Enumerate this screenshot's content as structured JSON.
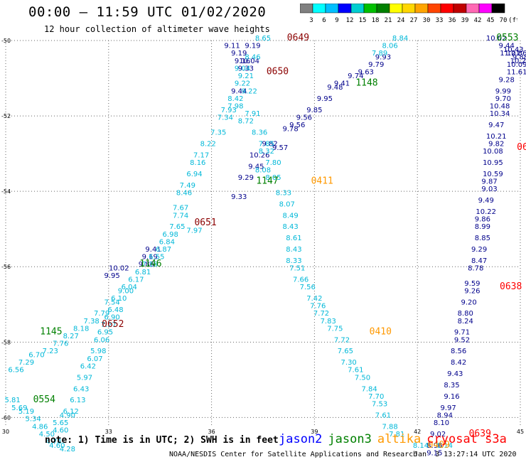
{
  "header": {
    "title": "00:00 – 11:59 UTC 01/02/2020",
    "subtitle": "12 hour collection of altimeter wave heights"
  },
  "colorbar": {
    "labels": [
      "3",
      "6",
      "9",
      "12",
      "15",
      "18",
      "21",
      "24",
      "27",
      "30",
      "33",
      "36",
      "39",
      "42",
      "45",
      "70",
      "(ft)"
    ],
    "colors": [
      "#808080",
      "#00ffff",
      "#00bfff",
      "#0000ff",
      "#00ced1",
      "#00c000",
      "#008000",
      "#ffff00",
      "#ffd700",
      "#ffa500",
      "#ff4500",
      "#ff0000",
      "#c00000",
      "#ff69b4",
      "#ff00ff",
      "#000000"
    ]
  },
  "footer": {
    "note": "note: 1) Time is in UTC; 2) SWH is in feet",
    "credit": "NOAA/NESDIS Center for Satellite Applications and Research",
    "credit_time": "Jan  3 13:27:14 UTC 2020"
  },
  "legend": [
    {
      "name": "jason2",
      "color": "#0000ff"
    },
    {
      "name": "jason3",
      "color": "#008000"
    },
    {
      "name": "altika",
      "color": "#ff9900"
    },
    {
      "name": "cryosat s3a",
      "color": "#ff0000"
    }
  ],
  "chart_data": {
    "type": "scatter",
    "xlim": [
      30,
      45
    ],
    "ylim": [
      -60.2,
      -50
    ],
    "xticks": [
      30,
      33,
      36,
      39,
      42,
      45
    ],
    "yticks": [
      -50,
      -52,
      -54,
      -56,
      -58,
      -60
    ],
    "grid": true,
    "series": [
      {
        "name": "jason2",
        "color": "#00008b",
        "points": [
          [
            36.6,
            -50.2,
            "9.11"
          ],
          [
            37.2,
            -50.2,
            "9.19"
          ],
          [
            36.8,
            -50.4,
            "9.19"
          ],
          [
            36.9,
            -50.6,
            "9.16"
          ],
          [
            37.1,
            -50.6,
            "10.04"
          ],
          [
            37.0,
            -50.8,
            "9.33"
          ],
          [
            36.8,
            -51.4,
            "9.44"
          ],
          [
            37.0,
            -53.7,
            "9.29"
          ],
          [
            36.8,
            -54.2,
            "9.33"
          ],
          [
            37.3,
            -53.4,
            "9.45"
          ],
          [
            38.0,
            -52.9,
            "9.57"
          ],
          [
            37.7,
            -52.8,
            "9.82"
          ],
          [
            37.4,
            -53.1,
            "10.26"
          ],
          [
            38.3,
            -52.4,
            "9.78"
          ],
          [
            38.5,
            -52.3,
            "9.56"
          ],
          [
            38.7,
            -52.1,
            "9.56"
          ],
          [
            39.0,
            -51.9,
            "9.85"
          ],
          [
            39.3,
            -51.6,
            "9.95"
          ],
          [
            39.6,
            -51.3,
            "9.48"
          ],
          [
            39.8,
            -51.2,
            "9.41"
          ],
          [
            40.2,
            -51.0,
            "9.74"
          ],
          [
            40.5,
            -50.9,
            "9.63"
          ],
          [
            40.8,
            -50.7,
            "9.79"
          ],
          [
            41.0,
            -50.5,
            "9.93"
          ],
          [
            34.3,
            -55.6,
            "9.41"
          ],
          [
            34.2,
            -55.8,
            "9.19"
          ],
          [
            33.3,
            -56.1,
            "10.02"
          ],
          [
            33.1,
            -56.3,
            "9.95"
          ],
          [
            34.1,
            -56.0,
            "9.86"
          ],
          [
            44.3,
            -50.0,
            "10.02"
          ],
          [
            44.6,
            -50.2,
            "9.44"
          ],
          [
            44.8,
            -50.3,
            "10.43"
          ],
          [
            44.7,
            -50.4,
            "11.21"
          ],
          [
            44.9,
            -50.4,
            "10.86"
          ],
          [
            44.9,
            -50.7,
            "10.09"
          ],
          [
            45.0,
            -50.5,
            "9.88"
          ],
          [
            45.0,
            -50.6,
            "10.24"
          ],
          [
            44.9,
            -50.9,
            "11.61"
          ],
          [
            44.6,
            -51.1,
            "9.28"
          ],
          [
            44.5,
            -51.4,
            "9.99"
          ],
          [
            44.5,
            -51.6,
            "9.70"
          ],
          [
            44.4,
            -51.8,
            "10.48"
          ],
          [
            44.4,
            -52.0,
            "10.34"
          ],
          [
            44.3,
            -52.3,
            "9.47"
          ],
          [
            44.3,
            -52.6,
            "10.21"
          ],
          [
            44.3,
            -52.8,
            "9.82"
          ],
          [
            44.2,
            -53.0,
            "10.08"
          ],
          [
            44.2,
            -53.3,
            "10.95"
          ],
          [
            44.2,
            -53.6,
            "10.59"
          ],
          [
            44.1,
            -53.8,
            "9.87"
          ],
          [
            44.1,
            -54.0,
            "9.03"
          ],
          [
            44.0,
            -54.3,
            "9.49"
          ],
          [
            44.0,
            -54.6,
            "10.22"
          ],
          [
            43.9,
            -54.8,
            "9.86"
          ],
          [
            43.9,
            -55.0,
            "8.99"
          ],
          [
            43.9,
            -55.3,
            "8.85"
          ],
          [
            43.8,
            -55.6,
            "9.29"
          ],
          [
            43.8,
            -55.9,
            "8.47"
          ],
          [
            43.7,
            -56.1,
            "8.78"
          ],
          [
            43.6,
            -56.5,
            "9.59"
          ],
          [
            43.6,
            -56.7,
            "9.26"
          ],
          [
            43.5,
            -57.0,
            "9.20"
          ],
          [
            43.4,
            -57.3,
            "8.80"
          ],
          [
            43.4,
            -57.5,
            "8.24"
          ],
          [
            43.3,
            -57.8,
            "9.71"
          ],
          [
            43.3,
            -58.0,
            "9.52"
          ],
          [
            43.2,
            -58.3,
            "8.56"
          ],
          [
            43.2,
            -58.6,
            "8.42"
          ],
          [
            43.1,
            -58.9,
            "9.43"
          ],
          [
            43.0,
            -59.2,
            "8.35"
          ],
          [
            43.0,
            -59.5,
            "9.16"
          ],
          [
            42.9,
            -59.8,
            "9.97"
          ],
          [
            42.8,
            -60.0,
            "8.94"
          ],
          [
            42.7,
            -60.2,
            "8.10"
          ],
          [
            42.6,
            -60.5,
            "9.02"
          ],
          [
            42.5,
            -60.8,
            "8.96"
          ],
          [
            42.5,
            -61.0,
            "9.15"
          ]
        ]
      },
      {
        "name": "jason3",
        "color": "#00b8d8",
        "points": [
          [
            37.5,
            -50.0,
            "8.65"
          ],
          [
            37.2,
            -50.5,
            "8.46"
          ],
          [
            36.9,
            -50.8,
            "9.04"
          ],
          [
            37.0,
            -51.0,
            "9.21"
          ],
          [
            36.9,
            -51.2,
            "9.22"
          ],
          [
            37.1,
            -51.4,
            "9.22"
          ],
          [
            36.7,
            -51.6,
            "8.42"
          ],
          [
            36.7,
            -51.8,
            "7.98"
          ],
          [
            36.5,
            -51.9,
            "7.93"
          ],
          [
            37.2,
            -52.0,
            "7.91"
          ],
          [
            36.4,
            -52.1,
            "7.34"
          ],
          [
            37.0,
            -52.2,
            "8.72"
          ],
          [
            36.2,
            -52.5,
            "7.35"
          ],
          [
            37.4,
            -52.5,
            "8.36"
          ],
          [
            35.9,
            -52.8,
            "8.22"
          ],
          [
            37.6,
            -52.8,
            "7.85"
          ],
          [
            37.6,
            -53.0,
            "8.32"
          ],
          [
            35.7,
            -53.1,
            "7.17"
          ],
          [
            35.6,
            -53.3,
            "8.16"
          ],
          [
            37.8,
            -53.3,
            "7.80"
          ],
          [
            37.5,
            -53.5,
            "8.08"
          ],
          [
            35.5,
            -53.6,
            "6.94"
          ],
          [
            37.8,
            -53.7,
            "8.05"
          ],
          [
            35.3,
            -53.9,
            "7.49"
          ],
          [
            35.2,
            -54.1,
            "8.46"
          ],
          [
            38.1,
            -54.1,
            "8.33"
          ],
          [
            38.2,
            -54.4,
            "8.07"
          ],
          [
            35.1,
            -54.5,
            "7.67"
          ],
          [
            35.1,
            -54.7,
            "7.74"
          ],
          [
            38.3,
            -54.7,
            "8.49"
          ],
          [
            35.0,
            -55.0,
            "7.65"
          ],
          [
            35.5,
            -55.1,
            "7.97"
          ],
          [
            34.8,
            -55.2,
            "6.98"
          ],
          [
            38.3,
            -55.0,
            "8.43"
          ],
          [
            34.7,
            -55.4,
            "6.84"
          ],
          [
            38.4,
            -55.3,
            "8.61"
          ],
          [
            34.6,
            -55.6,
            "6.87"
          ],
          [
            38.4,
            -55.6,
            "8.43"
          ],
          [
            34.4,
            -55.8,
            "6.55"
          ],
          [
            38.4,
            -55.9,
            "8.33"
          ],
          [
            34.2,
            -56.0,
            "7.15"
          ],
          [
            38.5,
            -56.1,
            "7.51"
          ],
          [
            34.0,
            -56.2,
            "6.81"
          ],
          [
            38.6,
            -56.4,
            "7.66"
          ],
          [
            33.8,
            -56.4,
            "6.17"
          ],
          [
            38.8,
            -56.6,
            "7.56"
          ],
          [
            33.6,
            -56.6,
            "6.04"
          ],
          [
            33.5,
            -56.7,
            "9.00"
          ],
          [
            39.0,
            -56.9,
            "7.42"
          ],
          [
            33.3,
            -56.9,
            "6.10"
          ],
          [
            33.1,
            -57.0,
            "7.54"
          ],
          [
            33.2,
            -57.2,
            "6.48"
          ],
          [
            39.1,
            -57.1,
            "7.76"
          ],
          [
            32.8,
            -57.3,
            "7.79"
          ],
          [
            33.1,
            -57.4,
            "6.90"
          ],
          [
            39.2,
            -57.3,
            "7.72"
          ],
          [
            32.5,
            -57.5,
            "7.38"
          ],
          [
            33.0,
            -57.6,
            "7.27"
          ],
          [
            39.4,
            -57.5,
            "7.83"
          ],
          [
            32.2,
            -57.7,
            "8.18"
          ],
          [
            32.9,
            -57.8,
            "6.95"
          ],
          [
            39.6,
            -57.7,
            "7.75"
          ],
          [
            31.9,
            -57.9,
            "8.27"
          ],
          [
            32.8,
            -58.0,
            "6.06"
          ],
          [
            39.8,
            -58.0,
            "7.72"
          ],
          [
            31.6,
            -58.1,
            "7.76"
          ],
          [
            32.7,
            -58.3,
            "5.98"
          ],
          [
            39.9,
            -58.3,
            "7.65"
          ],
          [
            31.3,
            -58.3,
            "7.23"
          ],
          [
            32.6,
            -58.5,
            "6.07"
          ],
          [
            40.0,
            -58.6,
            "7.30"
          ],
          [
            30.9,
            -58.4,
            "6.70"
          ],
          [
            32.4,
            -58.7,
            "6.42"
          ],
          [
            30.6,
            -58.6,
            "7.29"
          ],
          [
            40.2,
            -58.8,
            "7.61"
          ],
          [
            32.3,
            -59.0,
            "5.97"
          ],
          [
            30.3,
            -58.8,
            "6.56"
          ],
          [
            40.4,
            -59.0,
            "7.50"
          ],
          [
            32.2,
            -59.3,
            "6.43"
          ],
          [
            40.6,
            -59.3,
            "7.84"
          ],
          [
            32.1,
            -59.6,
            "6.13"
          ],
          [
            40.8,
            -59.5,
            "7.70"
          ],
          [
            31.9,
            -59.9,
            "6.12"
          ],
          [
            40.9,
            -59.7,
            "7.53"
          ],
          [
            30.2,
            -59.6,
            "5.81"
          ],
          [
            31.8,
            -60.0,
            "4.90"
          ],
          [
            41.0,
            -60.0,
            "7.61"
          ],
          [
            30.4,
            -59.8,
            "5.69"
          ],
          [
            30.6,
            -59.9,
            "5.19"
          ],
          [
            31.6,
            -60.2,
            "5.65"
          ],
          [
            41.2,
            -60.3,
            "7.88"
          ],
          [
            30.8,
            -60.1,
            "5.34"
          ],
          [
            31.6,
            -60.4,
            "4.60"
          ],
          [
            31.0,
            -60.3,
            "4.86"
          ],
          [
            41.4,
            -60.5,
            "7.81"
          ],
          [
            31.2,
            -60.5,
            "4.50"
          ],
          [
            31.4,
            -60.7,
            "4.74"
          ],
          [
            31.5,
            -60.8,
            "4.60"
          ],
          [
            31.8,
            -60.9,
            "4.28"
          ],
          [
            42.1,
            -60.8,
            "8.14"
          ],
          [
            42.8,
            -60.8,
            "8.14"
          ],
          [
            41.5,
            -50.0,
            "8.84"
          ],
          [
            41.2,
            -50.2,
            "8.06"
          ],
          [
            40.9,
            -50.4,
            "7.89"
          ]
        ]
      },
      {
        "name": "altika",
        "color": "#ff9900",
        "points": []
      }
    ],
    "time_labels": [
      {
        "x": 38.2,
        "y": -50.0,
        "text": "0649",
        "color": "#8b0000"
      },
      {
        "x": 37.6,
        "y": -50.9,
        "text": "0650",
        "color": "#8b0000"
      },
      {
        "x": 35.5,
        "y": -54.9,
        "text": "0651",
        "color": "#8b0000"
      },
      {
        "x": 32.8,
        "y": -57.6,
        "text": "0652",
        "color": "#8b0000"
      },
      {
        "x": 37.3,
        "y": -53.8,
        "text": "1147",
        "color": "#008000"
      },
      {
        "x": 40.2,
        "y": -51.2,
        "text": "1148",
        "color": "#008000"
      },
      {
        "x": 33.9,
        "y": -56.0,
        "text": "1146",
        "color": "#008000"
      },
      {
        "x": 31.0,
        "y": -57.8,
        "text": "1145",
        "color": "#008000"
      },
      {
        "x": 30.8,
        "y": -59.6,
        "text": "0554",
        "color": "#008000"
      },
      {
        "x": 44.3,
        "y": -50.0,
        "text": "0553",
        "color": "#008000"
      },
      {
        "x": 38.9,
        "y": -53.8,
        "text": "0411",
        "color": "#ff9900"
      },
      {
        "x": 40.6,
        "y": -57.8,
        "text": "0410",
        "color": "#ff9900"
      },
      {
        "x": 42.3,
        "y": -60.8,
        "text": "0409",
        "color": "#ff9900"
      },
      {
        "x": 44.4,
        "y": -56.6,
        "text": "0638",
        "color": "#ff0000"
      },
      {
        "x": 43.5,
        "y": -60.5,
        "text": "0639",
        "color": "#ff0000"
      },
      {
        "x": 44.9,
        "y": -52.9,
        "text": "06",
        "color": "#ff0000"
      }
    ]
  }
}
